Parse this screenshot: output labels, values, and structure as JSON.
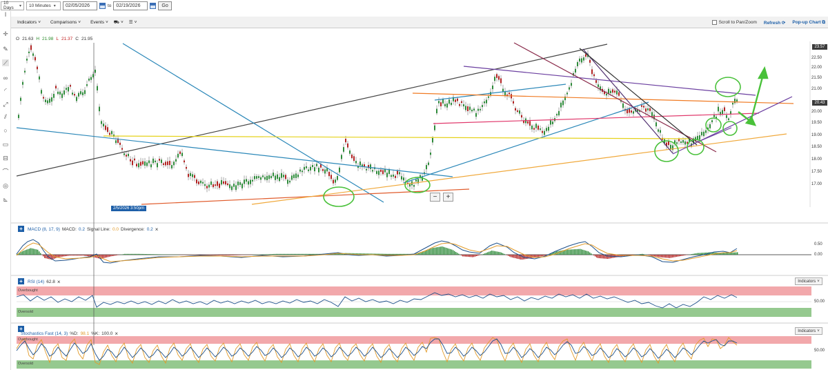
{
  "topbar": {
    "range": "10 Days",
    "interval": "10 Minutes",
    "from_date": "02/05/2026",
    "to_label": "to",
    "to_date": "02/19/2026",
    "go": "Go"
  },
  "menubar": {
    "indicators": "Indicators",
    "comparisons": "Comparisons",
    "events": "Events",
    "scroll_label": "Scroll to Pan/Zoom",
    "refresh": "Refresh",
    "popup": "Pop-up Chart"
  },
  "ohlc": {
    "o_label": "O",
    "o": "21.63",
    "h_label": "H",
    "h": "21.98",
    "l_label": "L",
    "l": "21.37",
    "c_label": "C",
    "c": "21.95"
  },
  "price_axis": {
    "ticks": [
      "22.50",
      "22.00",
      "21.50",
      "21.00",
      "20.50",
      "20.00",
      "19.50",
      "19.00",
      "18.50",
      "18.00",
      "17.50",
      "17.00"
    ],
    "top_label": "23.57",
    "current_label": "20.43"
  },
  "crosshair_date": "2/5/2026 3:50pm",
  "zoom": {
    "minus": "−",
    "plus": "+"
  },
  "macd": {
    "title": "MACD (8, 17, 9)",
    "macd_label": "MACD:",
    "macd_value": "0.2",
    "signal_label": "Signal Line:",
    "signal_value": "0.0",
    "div_label": "Divergence:",
    "div_value": "0.2",
    "close": "×",
    "ticks": [
      "0.50",
      "0.00"
    ]
  },
  "rsi": {
    "title": "RSI (14)",
    "value": "62.8",
    "close": "×",
    "overbought": "Overbought",
    "oversold": "Oversold",
    "tick": "50.00",
    "indicators_btn": "Indicators"
  },
  "stoch": {
    "title": "Stochastics Fast (14, 3)",
    "d_label": "%D:",
    "d_value": "98.1",
    "k_label": "%K:",
    "k_value": "100.0",
    "close": "×",
    "overbought": "Overbought",
    "oversold": "Oversold",
    "tick": "50.00",
    "indicators_btn": "Indicators"
  },
  "colors": {
    "up": "#2e8b3a",
    "down": "#b22222",
    "overbought_zone": "#f2a8ab",
    "oversold_zone": "#95c98f",
    "accent": "#1d5fa8"
  }
}
